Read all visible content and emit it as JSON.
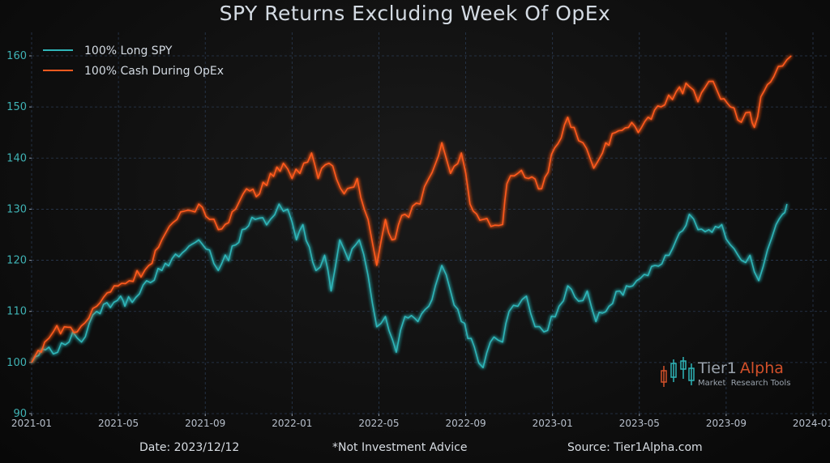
{
  "chart_data": {
    "type": "line",
    "title": "SPY Returns Excluding Week Of OpEx",
    "xlabel": "",
    "ylabel": "",
    "x_ticks": [
      "2021-01",
      "2021-05",
      "2021-09",
      "2022-01",
      "2022-05",
      "2022-09",
      "2023-01",
      "2023-05",
      "2023-09",
      "2024-01"
    ],
    "y_ticks": [
      90,
      100,
      110,
      120,
      130,
      140,
      150,
      160
    ],
    "ylim": [
      90,
      162
    ],
    "xlim_months": [
      0,
      36
    ],
    "grid": true,
    "legend_position": "top-left",
    "series": [
      {
        "name": "100% Long SPY",
        "color": "#2fb5b8",
        "points": [
          [
            0,
            100
          ],
          [
            0.8,
            103
          ],
          [
            1.2,
            102
          ],
          [
            1.9,
            106
          ],
          [
            2.3,
            104
          ],
          [
            3.0,
            110
          ],
          [
            4.1,
            113
          ],
          [
            4.3,
            111
          ],
          [
            5.3,
            116
          ],
          [
            6.0,
            118
          ],
          [
            7.1,
            122
          ],
          [
            7.7,
            124
          ],
          [
            8.2,
            122
          ],
          [
            8.6,
            118
          ],
          [
            9.4,
            123
          ],
          [
            9.7,
            126
          ],
          [
            10.3,
            128
          ],
          [
            11.0,
            128
          ],
          [
            11.4,
            131
          ],
          [
            11.8,
            130
          ],
          [
            12.2,
            124
          ],
          [
            12.5,
            127
          ],
          [
            13.1,
            118
          ],
          [
            13.5,
            121
          ],
          [
            13.8,
            114
          ],
          [
            14.2,
            124
          ],
          [
            14.6,
            120
          ],
          [
            15.1,
            124
          ],
          [
            15.5,
            117
          ],
          [
            15.9,
            107
          ],
          [
            16.3,
            109
          ],
          [
            16.8,
            102
          ],
          [
            17.2,
            109
          ],
          [
            17.8,
            108
          ],
          [
            18.3,
            111
          ],
          [
            18.9,
            119
          ],
          [
            19.3,
            114
          ],
          [
            19.8,
            108
          ],
          [
            20.4,
            103
          ],
          [
            20.8,
            99
          ],
          [
            21.3,
            105
          ],
          [
            21.7,
            104
          ],
          [
            22.0,
            110
          ],
          [
            22.4,
            111
          ],
          [
            22.8,
            113
          ],
          [
            23.2,
            107
          ],
          [
            23.6,
            106
          ],
          [
            24.3,
            111
          ],
          [
            24.7,
            115
          ],
          [
            25.2,
            112
          ],
          [
            25.6,
            114
          ],
          [
            26.0,
            108
          ],
          [
            26.6,
            111
          ],
          [
            27.1,
            114
          ],
          [
            27.7,
            115
          ],
          [
            28.4,
            117
          ],
          [
            29.2,
            121
          ],
          [
            29.7,
            124
          ],
          [
            30.3,
            129
          ],
          [
            30.7,
            126
          ],
          [
            31.2,
            126
          ],
          [
            31.8,
            127
          ],
          [
            32.2,
            123
          ],
          [
            32.7,
            120
          ],
          [
            33.1,
            121
          ],
          [
            33.5,
            116
          ],
          [
            33.9,
            122
          ],
          [
            34.3,
            127
          ],
          [
            34.6,
            129
          ],
          [
            34.8,
            131
          ]
        ]
      },
      {
        "name": "100% Cash During OpEx",
        "color": "#ff5a1f",
        "points": [
          [
            0,
            100
          ],
          [
            0.6,
            104
          ],
          [
            1.0,
            106
          ],
          [
            1.5,
            107
          ],
          [
            2.1,
            106
          ],
          [
            3.0,
            111
          ],
          [
            3.8,
            115
          ],
          [
            4.5,
            116
          ],
          [
            5.4,
            119
          ],
          [
            6.0,
            124
          ],
          [
            6.7,
            128
          ],
          [
            7.7,
            131
          ],
          [
            8.2,
            128
          ],
          [
            8.6,
            126
          ],
          [
            9.4,
            130
          ],
          [
            9.9,
            134
          ],
          [
            10.5,
            133
          ],
          [
            11.0,
            137
          ],
          [
            11.6,
            139
          ],
          [
            12.0,
            136
          ],
          [
            12.9,
            141
          ],
          [
            13.2,
            136
          ],
          [
            13.7,
            139
          ],
          [
            14.4,
            133
          ],
          [
            15.0,
            136
          ],
          [
            15.5,
            128
          ],
          [
            15.9,
            119
          ],
          [
            16.3,
            128
          ],
          [
            16.6,
            124
          ],
          [
            17.2,
            129
          ],
          [
            17.9,
            131
          ],
          [
            18.3,
            136
          ],
          [
            18.9,
            143
          ],
          [
            19.3,
            137
          ],
          [
            19.8,
            141
          ],
          [
            20.2,
            131
          ],
          [
            20.8,
            128
          ],
          [
            21.7,
            127
          ],
          [
            21.9,
            135
          ],
          [
            22.4,
            137
          ],
          [
            22.9,
            136
          ],
          [
            23.5,
            134
          ],
          [
            24.1,
            142
          ],
          [
            24.7,
            148
          ],
          [
            25.0,
            146
          ],
          [
            25.4,
            143
          ],
          [
            25.9,
            138
          ],
          [
            26.3,
            141
          ],
          [
            26.9,
            145
          ],
          [
            27.5,
            146
          ],
          [
            28.1,
            146
          ],
          [
            28.4,
            148
          ],
          [
            29.0,
            150
          ],
          [
            29.7,
            153
          ],
          [
            30.3,
            154
          ],
          [
            30.7,
            151
          ],
          [
            31.2,
            155
          ],
          [
            31.6,
            153
          ],
          [
            32.2,
            150
          ],
          [
            32.7,
            147
          ],
          [
            33.1,
            149
          ],
          [
            33.3,
            146
          ],
          [
            33.6,
            152
          ],
          [
            34.2,
            156
          ],
          [
            34.6,
            158
          ],
          [
            35.0,
            160
          ]
        ]
      }
    ]
  },
  "footer": {
    "date": "Date: 2023/12/12",
    "disclaimer": "*Not Investment Advice",
    "source": "Source: Tier1Alpha.com"
  },
  "logo": {
    "name_part1": "Tier1",
    "name_part2": "Alpha",
    "tagline": "Market  Research Tools",
    "color_gray": "#9aa3ad",
    "color_orange": "#d2502a",
    "color_teal": "#2fb5b8"
  }
}
